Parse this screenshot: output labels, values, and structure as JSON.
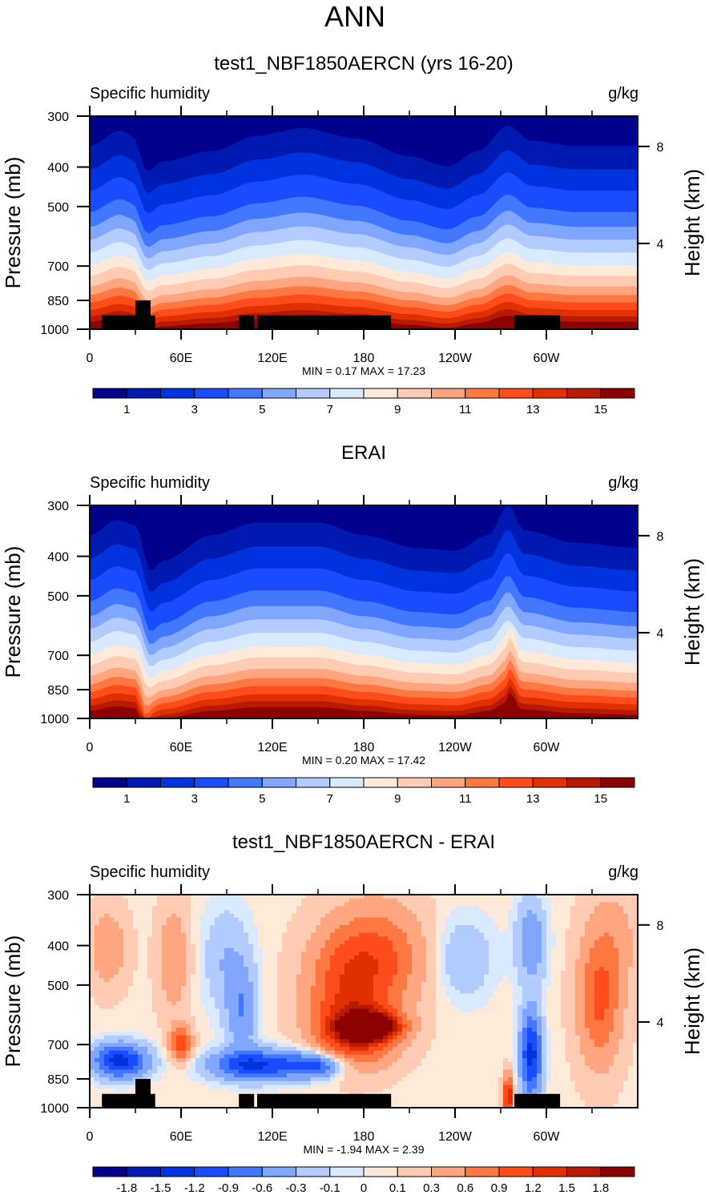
{
  "figure": {
    "title": "ANN"
  },
  "palette": {
    "levels_colors": [
      "#00008c",
      "#0019b0",
      "#0033dd",
      "#1a4cff",
      "#4178ff",
      "#80a6ff",
      "#b3ccff",
      "#d9e9ff",
      "#ffe9d9",
      "#ffccb3",
      "#ffa680",
      "#ff7841",
      "#ff4c1a",
      "#e03000",
      "#b81a00",
      "#8c0000"
    ],
    "land_mask": "#000000"
  },
  "chart_data": [
    {
      "id": "model",
      "type": "heatmap",
      "title": "test1_NBF1850AERCN (yrs 16-20)",
      "left_string": "Specific humidity",
      "right_string": "g/kg",
      "ylabel": "Pressure (mb)",
      "ylabel_right": "Height (km)",
      "x_ticks": [
        0,
        60,
        120,
        180,
        240,
        300
      ],
      "x_tick_labels": [
        "0",
        "60E",
        "120E",
        "180",
        "120W",
        "60W"
      ],
      "x_minor_ticks": [
        30,
        90,
        150,
        210,
        270,
        330
      ],
      "xlim": [
        0,
        360
      ],
      "y_ticks": [
        300,
        400,
        500,
        700,
        850,
        1000
      ],
      "y_tick_labels": [
        "300",
        "400",
        "500",
        "700",
        "850",
        "1000"
      ],
      "ylim": [
        1000,
        300
      ],
      "y_right_ticks": [
        8,
        4
      ],
      "y_right_tick_labels": [
        "8",
        "4"
      ],
      "stats": "MIN =   0.17  MAX =  17.23",
      "min": 0.17,
      "max": 17.23,
      "colorbar": {
        "levels": [
          1,
          2,
          3,
          4,
          5,
          6,
          7,
          8,
          9,
          10,
          11,
          12,
          13,
          14,
          15
        ],
        "labels": [
          "1",
          "3",
          "5",
          "7",
          "9",
          "11",
          "13",
          "15"
        ],
        "label_every": 2
      },
      "field_kind": "humidity_model",
      "land_blocks": [
        {
          "lon0": 8,
          "lon1": 43,
          "p_top": 925
        },
        {
          "lon0": 30,
          "lon1": 40,
          "p_top": 850
        },
        {
          "lon0": 98,
          "lon1": 108,
          "p_top": 925
        },
        {
          "lon0": 110,
          "lon1": 198,
          "p_top": 925
        },
        {
          "lon0": 279,
          "lon1": 309,
          "p_top": 925
        }
      ]
    },
    {
      "id": "obs",
      "type": "heatmap",
      "title": "ERAI",
      "left_string": "Specific humidity",
      "right_string": "g/kg",
      "ylabel": "Pressure (mb)",
      "ylabel_right": "Height (km)",
      "x_ticks": [
        0,
        60,
        120,
        180,
        240,
        300
      ],
      "x_tick_labels": [
        "0",
        "60E",
        "120E",
        "180",
        "120W",
        "60W"
      ],
      "x_minor_ticks": [
        30,
        90,
        150,
        210,
        270,
        330
      ],
      "xlim": [
        0,
        360
      ],
      "y_ticks": [
        300,
        400,
        500,
        700,
        850,
        1000
      ],
      "y_tick_labels": [
        "300",
        "400",
        "500",
        "700",
        "850",
        "1000"
      ],
      "ylim": [
        1000,
        300
      ],
      "y_right_ticks": [
        8,
        4
      ],
      "y_right_tick_labels": [
        "8",
        "4"
      ],
      "stats": "MIN =   0.20  MAX =  17.42",
      "min": 0.2,
      "max": 17.42,
      "colorbar": {
        "levels": [
          1,
          2,
          3,
          4,
          5,
          6,
          7,
          8,
          9,
          10,
          11,
          12,
          13,
          14,
          15
        ],
        "labels": [
          "1",
          "3",
          "5",
          "7",
          "9",
          "11",
          "13",
          "15"
        ],
        "label_every": 2
      },
      "field_kind": "humidity_obs",
      "land_blocks": []
    },
    {
      "id": "diff",
      "type": "heatmap",
      "title": "test1_NBF1850AERCN - ERAI",
      "left_string": "Specific humidity",
      "right_string": "g/kg",
      "ylabel": "Pressure (mb)",
      "ylabel_right": "Height (km)",
      "x_ticks": [
        0,
        60,
        120,
        180,
        240,
        300
      ],
      "x_tick_labels": [
        "0",
        "60E",
        "120E",
        "180",
        "120W",
        "60W"
      ],
      "x_minor_ticks": [
        30,
        90,
        150,
        210,
        270,
        330
      ],
      "xlim": [
        0,
        360
      ],
      "y_ticks": [
        300,
        400,
        500,
        700,
        850,
        1000
      ],
      "y_tick_labels": [
        "300",
        "400",
        "500",
        "700",
        "850",
        "1000"
      ],
      "ylim": [
        1000,
        300
      ],
      "y_right_ticks": [
        8,
        4
      ],
      "y_right_tick_labels": [
        "8",
        "4"
      ],
      "stats": "MIN =  -1.94  MAX =   2.39",
      "min": -1.94,
      "max": 2.39,
      "colorbar": {
        "levels": [
          -1.8,
          -1.5,
          -1.2,
          -0.9,
          -0.6,
          -0.3,
          -0.1,
          0,
          0.1,
          0.3,
          0.6,
          0.9,
          1.2,
          1.5,
          1.8
        ],
        "labels": [
          "-1.8",
          "-1.5",
          "-1.2",
          "-0.9",
          "-0.6",
          "-0.3",
          "-0.1",
          "0",
          "0.1",
          "0.3",
          "0.6",
          "0.9",
          "1.2",
          "1.5",
          "1.8"
        ],
        "label_every": 1
      },
      "field_kind": "difference",
      "land_blocks": [
        {
          "lon0": 8,
          "lon1": 43,
          "p_top": 925
        },
        {
          "lon0": 30,
          "lon1": 40,
          "p_top": 850
        },
        {
          "lon0": 98,
          "lon1": 108,
          "p_top": 925
        },
        {
          "lon0": 110,
          "lon1": 198,
          "p_top": 925
        },
        {
          "lon0": 279,
          "lon1": 309,
          "p_top": 925
        }
      ]
    }
  ]
}
